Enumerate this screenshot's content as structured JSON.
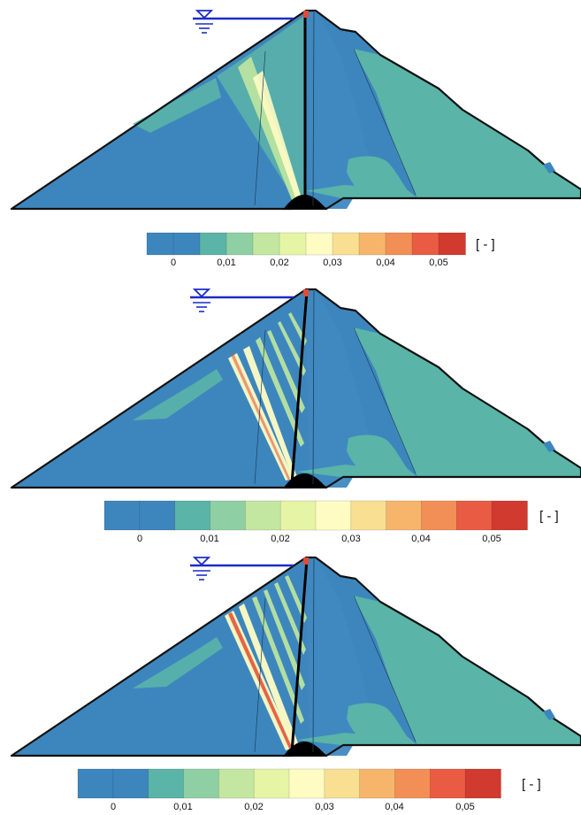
{
  "panels": [
    {
      "id": "panel1",
      "dam_fill": "#3d86bd",
      "zone_fill": "#5ab4a8"
    },
    {
      "id": "panel2",
      "dam_fill": "#3d86bd",
      "zone_fill": "#5ab4a8"
    },
    {
      "id": "panel3",
      "dam_fill": "#3d86bd",
      "zone_fill": "#5ab4a8"
    }
  ],
  "legends": [
    {
      "unit": "[ - ]",
      "tick_labels": [
        "0",
        "0,01",
        "0,02",
        "0,03",
        "0,04",
        "0,05"
      ]
    },
    {
      "unit": "[ - ]",
      "tick_labels": [
        "0",
        "0,01",
        "0,02",
        "0,03",
        "0,04",
        "0,05"
      ]
    },
    {
      "unit": "[ - ]",
      "tick_labels": [
        "0",
        "0,01",
        "0,02",
        "0,03",
        "0,04",
        "0,05"
      ]
    }
  ],
  "legend_colors": [
    "#3d86bd",
    "#3d86bd",
    "#5ab4a8",
    "#8fcfa4",
    "#c3e6a1",
    "#e6f4a6",
    "#fefcc3",
    "#f9df92",
    "#f7b56c",
    "#f28f56",
    "#e95c43",
    "#d13a2f"
  ],
  "water_color": "#1a2cc8",
  "outline_color": "#111111",
  "hotspot_color": "#e34a33"
}
